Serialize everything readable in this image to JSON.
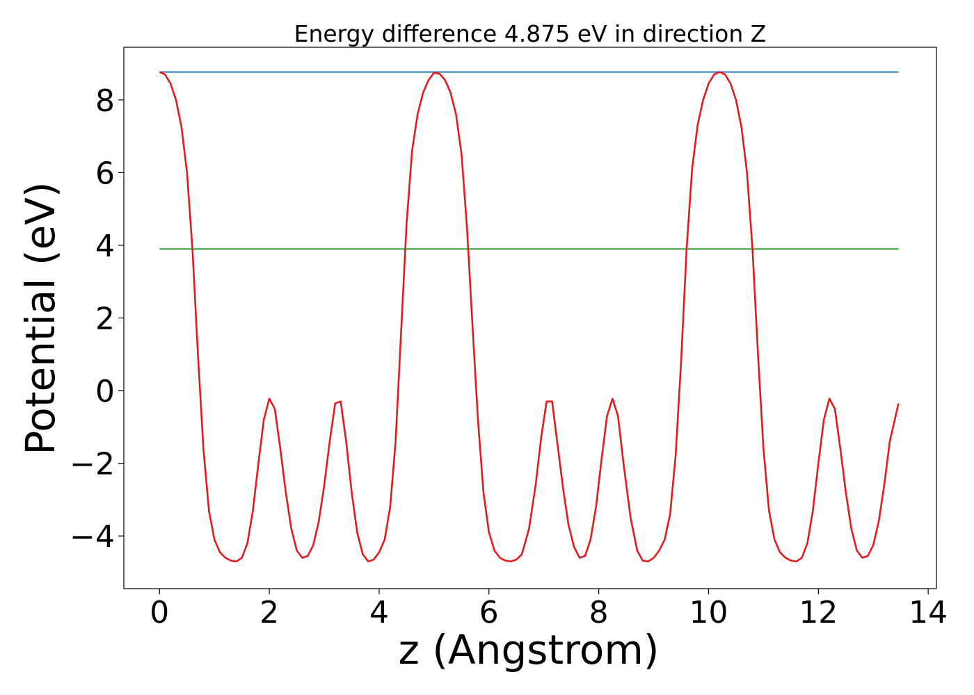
{
  "chart_data": {
    "type": "line",
    "title": "Energy difference 4.875 eV in direction Z",
    "xlabel": "z (Angstrom)",
    "ylabel": "Potential (eV)",
    "xlim": [
      -0.65,
      14.15
    ],
    "ylim": [
      -5.45,
      9.45
    ],
    "xticks": [
      0,
      2,
      4,
      6,
      8,
      10,
      12,
      14
    ],
    "xtick_labels": [
      "0",
      "2",
      "4",
      "6",
      "8",
      "10",
      "12",
      "14"
    ],
    "yticks": [
      -4,
      -2,
      0,
      2,
      4,
      6,
      8
    ],
    "ytick_labels": [
      "−4",
      "−2",
      "0",
      "2",
      "4",
      "6",
      "8"
    ],
    "grid": false,
    "series": [
      {
        "color": "#1f77b4",
        "x": [
          0,
          13.46
        ],
        "y": [
          8.77,
          8.77
        ]
      },
      {
        "color": "#2ca02c",
        "x": [
          0,
          13.46
        ],
        "y": [
          3.9,
          3.9
        ]
      },
      {
        "color": "#e41a1c",
        "x": [
          0.0,
          0.1,
          0.2,
          0.3,
          0.4,
          0.5,
          0.6,
          0.7,
          0.8,
          0.9,
          1.0,
          1.1,
          1.2,
          1.3,
          1.4,
          1.5,
          1.6,
          1.7,
          1.8,
          1.9,
          2.0,
          2.1,
          2.2,
          2.3,
          2.4,
          2.5,
          2.6,
          2.7,
          2.8,
          2.9,
          3.0,
          3.1,
          3.2,
          3.3,
          3.4,
          3.5,
          3.6,
          3.7,
          3.8,
          3.9,
          4.0,
          4.1,
          4.2,
          4.3,
          4.4,
          4.5,
          4.6,
          4.7,
          4.8,
          4.9,
          5.0,
          5.1,
          5.2,
          5.3,
          5.4,
          5.5,
          5.6,
          5.7,
          5.8,
          5.9,
          6.0,
          6.1,
          6.2,
          6.3,
          6.4,
          6.5,
          6.6,
          6.73,
          6.85,
          6.95,
          7.05,
          7.15,
          7.25,
          7.35,
          7.45,
          7.55,
          7.65,
          7.75,
          7.85,
          7.95,
          8.05,
          8.15,
          8.25,
          8.35,
          8.45,
          8.58,
          8.7,
          8.8,
          8.9,
          9.0,
          9.1,
          9.2,
          9.3,
          9.4,
          9.5,
          9.6,
          9.7,
          9.8,
          9.9,
          10.0,
          10.1,
          10.2,
          10.3,
          10.4,
          10.5,
          10.6,
          10.7,
          10.8,
          10.9,
          11.0,
          11.1,
          11.2,
          11.3,
          11.4,
          11.5,
          11.6,
          11.7,
          11.8,
          11.9,
          12.0,
          12.1,
          12.2,
          12.3,
          12.4,
          12.5,
          12.6,
          12.7,
          12.8,
          12.9,
          13.0,
          13.1,
          13.2,
          13.3,
          13.46
        ],
        "y": [
          8.77,
          8.7,
          8.45,
          8.0,
          7.25,
          6.0,
          3.9,
          1.0,
          -1.6,
          -3.3,
          -4.1,
          -4.45,
          -4.6,
          -4.68,
          -4.7,
          -4.6,
          -4.2,
          -3.3,
          -2.0,
          -0.8,
          -0.22,
          -0.5,
          -1.6,
          -2.8,
          -3.8,
          -4.4,
          -4.6,
          -4.55,
          -4.25,
          -3.6,
          -2.6,
          -1.4,
          -0.35,
          -0.3,
          -1.4,
          -2.8,
          -3.9,
          -4.5,
          -4.7,
          -4.65,
          -4.45,
          -4.1,
          -3.2,
          -1.4,
          1.6,
          4.6,
          6.6,
          7.6,
          8.2,
          8.55,
          8.75,
          8.72,
          8.55,
          8.2,
          7.6,
          6.5,
          4.5,
          1.8,
          -0.8,
          -2.8,
          -3.9,
          -4.4,
          -4.6,
          -4.68,
          -4.7,
          -4.65,
          -4.5,
          -3.8,
          -2.6,
          -1.3,
          -0.3,
          -0.3,
          -1.5,
          -2.7,
          -3.7,
          -4.3,
          -4.6,
          -4.55,
          -4.1,
          -3.2,
          -1.9,
          -0.7,
          -0.22,
          -0.7,
          -2.0,
          -3.5,
          -4.4,
          -4.68,
          -4.7,
          -4.6,
          -4.4,
          -4.1,
          -3.4,
          -1.8,
          0.8,
          3.9,
          6.1,
          7.3,
          8.0,
          8.45,
          8.7,
          8.77,
          8.7,
          8.45,
          8.0,
          7.25,
          6.0,
          3.9,
          1.0,
          -1.6,
          -3.3,
          -4.1,
          -4.45,
          -4.6,
          -4.68,
          -4.7,
          -4.6,
          -4.2,
          -3.3,
          -2.0,
          -0.8,
          -0.22,
          -0.5,
          -1.6,
          -2.8,
          -3.8,
          -4.4,
          -4.6,
          -4.55,
          -4.25,
          -3.6,
          -2.6,
          -1.4,
          -0.35
        ]
      }
    ]
  }
}
